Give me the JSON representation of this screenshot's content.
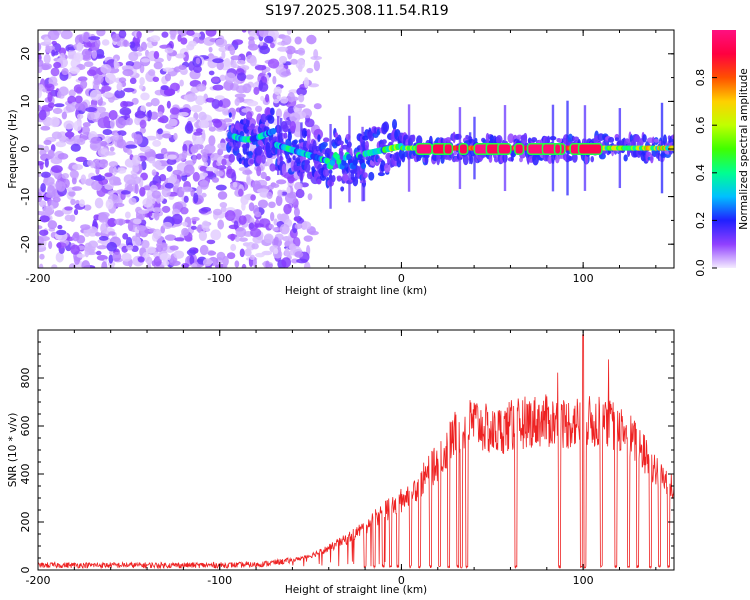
{
  "title": "S197.2025.308.11.54.R19",
  "colors": {
    "snr_line": "#ee2222",
    "axis": "#000000",
    "background": "#ffffff"
  },
  "chart_data": [
    {
      "type": "heatmap",
      "name": "dynamic-spectrum",
      "xlabel": "Height of straight line (km)",
      "ylabel": "Frequency (Hz)",
      "xlim": [
        -200,
        150
      ],
      "ylim": [
        -25,
        25
      ],
      "x_ticks": [
        -200,
        -100,
        0,
        100
      ],
      "x_tick_labels": [
        "-200",
        "-100",
        "0",
        "100"
      ],
      "y_ticks": [
        -20,
        -10,
        0,
        10,
        20
      ],
      "y_tick_labels": [
        "-20",
        "-10",
        "0",
        "10",
        "20"
      ],
      "description_values": {
        "noise_region_km": [
          -200,
          -55
        ],
        "carrier_frequency_hz": 0,
        "strong_carrier_region_km": [
          0,
          150
        ]
      },
      "colorbar": {
        "label": "Normalized spectral amplitude",
        "range": [
          0,
          1
        ],
        "ticks": [
          0,
          0.2,
          0.4,
          0.6,
          0.8
        ],
        "tick_labels": [
          "0.0",
          "0.2",
          "0.4",
          "0.6",
          "0.8"
        ],
        "stops": [
          {
            "v": 0.0,
            "color": "#f4ecff"
          },
          {
            "v": 0.1,
            "color": "#9040ff"
          },
          {
            "v": 0.2,
            "color": "#2020ff"
          },
          {
            "v": 0.3,
            "color": "#00c0ff"
          },
          {
            "v": 0.4,
            "color": "#00ff90"
          },
          {
            "v": 0.5,
            "color": "#40ff00"
          },
          {
            "v": 0.6,
            "color": "#c0ff00"
          },
          {
            "v": 0.7,
            "color": "#ffd000"
          },
          {
            "v": 0.8,
            "color": "#ff5000"
          },
          {
            "v": 0.9,
            "color": "#ff0040"
          },
          {
            "v": 1.0,
            "color": "#ff1080"
          }
        ]
      }
    },
    {
      "type": "line",
      "name": "snr",
      "xlabel": "Height of straight line (km)",
      "ylabel": "SNR (10 * v/v)",
      "xlim": [
        -200,
        150
      ],
      "ylim": [
        0,
        1000
      ],
      "x_ticks": [
        -200,
        -100,
        0,
        100
      ],
      "x_tick_labels": [
        "-200",
        "-100",
        "0",
        "100"
      ],
      "y_ticks": [
        0,
        200,
        400,
        600,
        800
      ],
      "y_tick_labels": [
        "0",
        "200",
        "400",
        "600",
        "800"
      ],
      "envelope": {
        "x": [
          -200,
          -150,
          -100,
          -80,
          -60,
          -50,
          -40,
          -30,
          -20,
          -10,
          0,
          10,
          20,
          30,
          40,
          50,
          60,
          70,
          80,
          90,
          100,
          110,
          120,
          130,
          140,
          150
        ],
        "y": [
          20,
          20,
          20,
          22,
          40,
          60,
          90,
          130,
          180,
          240,
          290,
          360,
          450,
          570,
          620,
          570,
          600,
          620,
          620,
          610,
          620,
          610,
          600,
          520,
          420,
          330
        ]
      },
      "dropouts_km": [
        -20,
        -15,
        -10,
        -6,
        -2,
        5,
        10,
        16,
        21,
        26,
        31,
        33,
        36,
        63,
        87,
        99,
        101,
        110,
        118,
        125,
        130,
        137,
        142,
        147
      ],
      "peak": {
        "x": 100,
        "y": 980
      }
    }
  ]
}
